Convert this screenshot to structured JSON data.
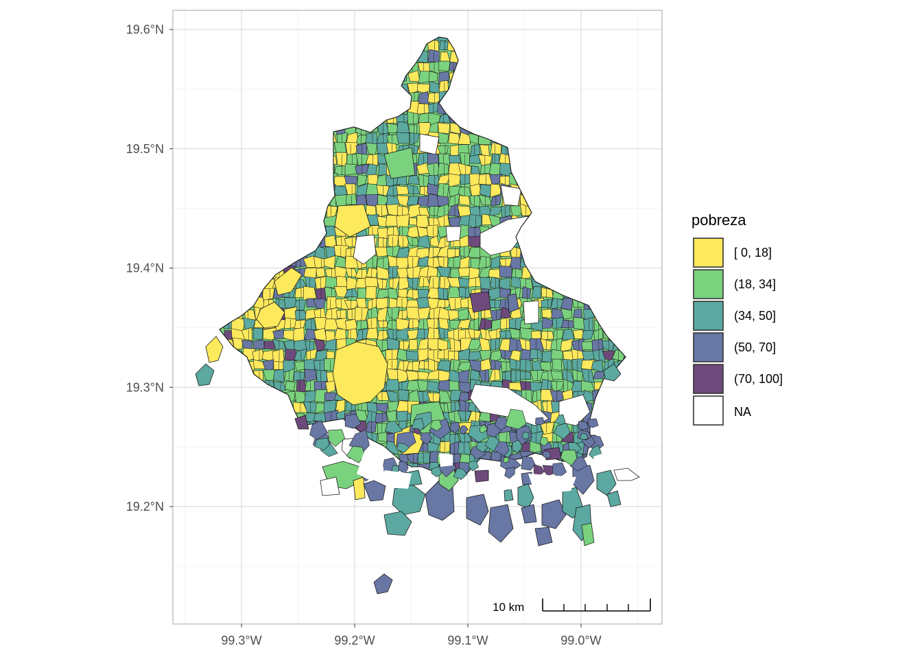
{
  "map": {
    "x_ticks": [
      {
        "lon": -99.3,
        "label": "99.3°W"
      },
      {
        "lon": -99.2,
        "label": "99.2°W"
      },
      {
        "lon": -99.1,
        "label": "99.1°W"
      },
      {
        "lon": -99.0,
        "label": "99.0°W"
      }
    ],
    "y_ticks": [
      {
        "lat": 19.6,
        "label": "19.6°N"
      },
      {
        "lat": 19.5,
        "label": "19.5°N"
      },
      {
        "lat": 19.4,
        "label": "19.4°N"
      },
      {
        "lat": 19.3,
        "label": "19.3°N"
      },
      {
        "lat": 19.2,
        "label": "19.2°N"
      }
    ],
    "lon_range": [
      -99.36,
      -98.93
    ],
    "lat_range": [
      19.115,
      19.615
    ],
    "scale_bar_label": "10 km",
    "region_fill_order": [
      "[ 0, 18]",
      "(18, 34]",
      "(34, 50]",
      "(50, 70]",
      "(70, 100]"
    ]
  },
  "legend": {
    "title": "pobreza",
    "items": [
      {
        "label": "[ 0, 18]",
        "color": "#FDE95C"
      },
      {
        "label": "(18, 34]",
        "color": "#7BD27E"
      },
      {
        "label": "(34, 50]",
        "color": "#5BA9A0"
      },
      {
        "label": "(50, 70]",
        "color": "#6877A4"
      },
      {
        "label": "(70, 100]",
        "color": "#6E4A7C"
      },
      {
        "label": "NA",
        "color": "#FFFFFF"
      }
    ]
  }
}
